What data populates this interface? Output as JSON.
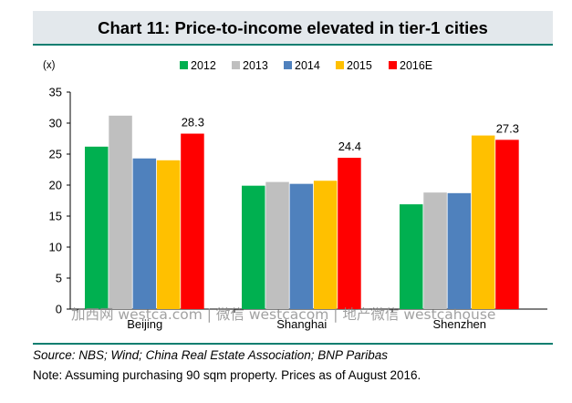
{
  "header": {
    "title": "Chart 11: Price-to-income elevated in tier-1 cities"
  },
  "footer": {
    "source": "Source: NBS; Wind; China Real Estate Association; BNP Paribas",
    "note": "Note: Assuming purchasing 90 sqm property. Prices as of August 2016."
  },
  "watermark": "加西网 westca.com | 微信 westcacom | 地产微信 westcahouse",
  "chart_data": {
    "type": "bar",
    "title": "Chart 11: Price-to-income elevated in tier-1 cities",
    "y_unit": "(x)",
    "categories": [
      "Beijing",
      "Shanghai",
      "Shenzhen"
    ],
    "series": [
      {
        "name": "2012",
        "color": "#00b050",
        "values": [
          26.2,
          19.9,
          16.9
        ]
      },
      {
        "name": "2013",
        "color": "#bfbfbf",
        "values": [
          31.2,
          20.5,
          18.8
        ]
      },
      {
        "name": "2014",
        "color": "#4f81bd",
        "values": [
          24.3,
          20.2,
          18.7
        ]
      },
      {
        "name": "2015",
        "color": "#ffc000",
        "values": [
          24.0,
          20.7,
          28.0
        ]
      },
      {
        "name": "2016E",
        "color": "#ff0000",
        "values": [
          28.3,
          24.4,
          27.3
        ]
      }
    ],
    "data_labels": [
      {
        "category": "Beijing",
        "series": "2016E",
        "text": "28.3"
      },
      {
        "category": "Shanghai",
        "series": "2016E",
        "text": "24.4"
      },
      {
        "category": "Shenzhen",
        "series": "2016E",
        "text": "27.3"
      }
    ],
    "ylim": [
      0,
      35
    ],
    "yticks": [
      0,
      5,
      10,
      15,
      20,
      25,
      30,
      35
    ],
    "legend_position": "top",
    "grid": false
  }
}
